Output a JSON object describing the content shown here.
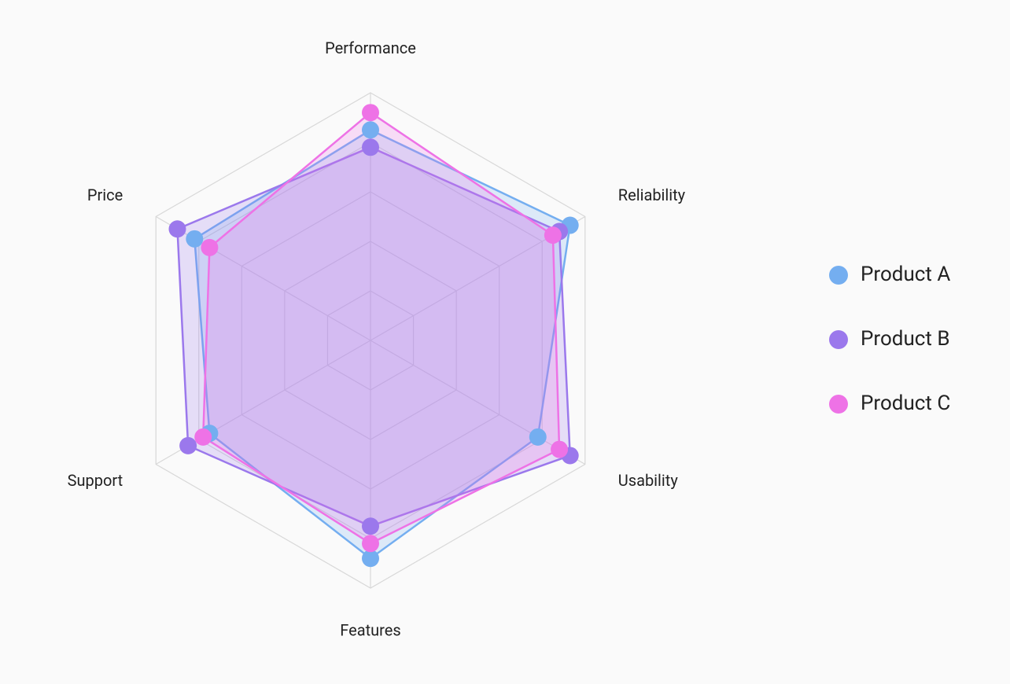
{
  "chart_data": {
    "type": "radar",
    "categories": [
      "Performance",
      "Reliability",
      "Usability",
      "Features",
      "Support",
      "Price"
    ],
    "rlim": [
      0,
      100
    ],
    "rticks": [
      20,
      40,
      60,
      80,
      100
    ],
    "grid": true,
    "legend": "right",
    "series": [
      {
        "name": "Product A",
        "color": "#74aef0",
        "values": [
          85,
          93,
          78,
          88,
          75,
          82
        ]
      },
      {
        "name": "Product B",
        "color": "#9b78ec",
        "values": [
          78,
          88,
          93,
          75,
          85,
          90
        ]
      },
      {
        "name": "Product C",
        "color": "#ee72e6",
        "values": [
          92,
          85,
          88,
          82,
          78,
          75
        ]
      }
    ]
  }
}
